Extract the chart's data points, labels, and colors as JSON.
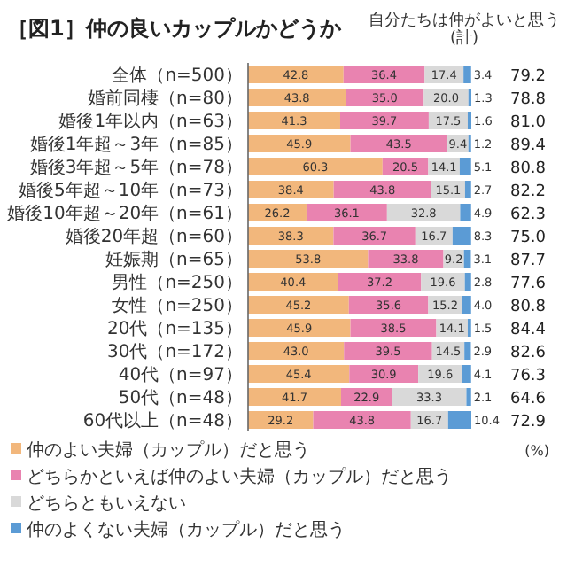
{
  "chart_data": {
    "type": "bar",
    "orientation": "horizontal",
    "stacked": true,
    "legend": "bottom left",
    "title": "［図1］仲の良いカップルかどうか",
    "categories": [
      "全体（n=500）",
      "婚前同棲（n=80）",
      "婚後1年以内（n=63）",
      "婚後1年超～3年（n=85）",
      "婚後3年超～5年（n=78）",
      "婚後5年超～10年（n=73）",
      "婚後10年超～20年（n=61）",
      "婚後20年超（n=60）",
      "妊娠期（n=65）",
      "男性（n=250）",
      "女性（n=250）",
      "20代（n=135）",
      "30代（n=172）",
      "40代（n=97）",
      "50代（n=48）",
      "60代以上（n=48）"
    ],
    "series": [
      {
        "name": "仲のよい夫婦（カップル）だと思う",
        "color": "#f2b77c",
        "values": [
          42.8,
          43.8,
          41.3,
          45.9,
          60.3,
          38.4,
          26.2,
          38.3,
          53.8,
          40.4,
          45.2,
          45.9,
          43.0,
          45.4,
          41.7,
          29.2
        ],
        "value_labels": [
          "42.8",
          "43.8",
          "41.3",
          "45.9",
          "60.3",
          "38.4",
          "26.2",
          "38.3",
          "53.8",
          "40.4",
          "45.2",
          "45.9",
          "43.0",
          "45.4",
          "41.7",
          "29.2"
        ]
      },
      {
        "name": "どちらかといえば仲のよい夫婦（カップル）だと思う",
        "color": "#e983b0",
        "values": [
          36.4,
          35.0,
          39.7,
          43.5,
          20.5,
          43.8,
          36.1,
          36.7,
          33.8,
          37.2,
          35.6,
          38.5,
          39.5,
          30.9,
          22.9,
          43.8
        ],
        "value_labels": [
          "36.4",
          "35.0",
          "39.7",
          "43.5",
          "20.5",
          "43.8",
          "36.1",
          "36.7",
          "33.8",
          "37.2",
          "35.6",
          "38.5",
          "39.5",
          "30.9",
          "22.9",
          "43.8"
        ]
      },
      {
        "name": "どちらともいえない",
        "color": "#d9d9d9",
        "values": [
          17.4,
          20.0,
          17.5,
          9.4,
          14.1,
          15.1,
          32.8,
          16.7,
          9.2,
          19.6,
          15.2,
          14.1,
          14.5,
          19.6,
          33.3,
          16.7
        ],
        "value_labels": [
          "17.4",
          "20.0",
          "17.5",
          "9.4",
          "14.1",
          "15.1",
          "32.8",
          "16.7",
          "9.2",
          "19.6",
          "15.2",
          "14.1",
          "14.5",
          "19.6",
          "33.3",
          "16.7"
        ]
      },
      {
        "name": "仲のよくない夫婦（カップル）だと思う",
        "color": "#5b9bd5",
        "values": [
          3.4,
          1.3,
          1.6,
          1.2,
          5.1,
          2.7,
          4.9,
          8.3,
          3.1,
          2.8,
          4.0,
          1.5,
          2.9,
          4.1,
          2.1,
          10.4
        ],
        "value_labels": [
          "3.4",
          "1.3",
          "1.6",
          "1.2",
          "5.1",
          "2.7",
          "4.9",
          "8.3",
          "3.1",
          "2.8",
          "4.0",
          "1.5",
          "2.9",
          "4.1",
          "2.1",
          "10.4"
        ]
      }
    ],
    "annotations": [
      "自分たちは仲がよいと思う(計)",
      "(%)",
      "79.2",
      "78.8",
      "81.0",
      "89.4",
      "80.8",
      "82.2",
      "62.3",
      "75.0",
      "87.7",
      "77.6",
      "80.8",
      "84.4",
      "82.6",
      "76.3",
      "64.6",
      "72.9"
    ]
  }
}
